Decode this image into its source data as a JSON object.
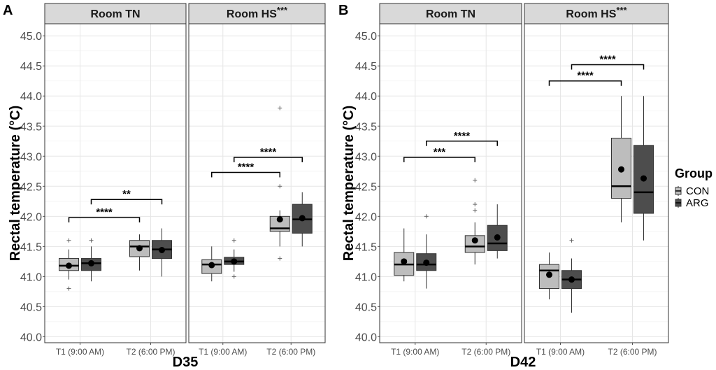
{
  "chart_data": {
    "type": "boxplot",
    "ylabel": "Rectal temperature (°C)",
    "ylim": [
      39.9,
      45.2
    ],
    "yticks": [
      "40.0",
      "40.5",
      "41.0",
      "41.5",
      "42.0",
      "42.5",
      "43.0",
      "43.5",
      "44.0",
      "44.5",
      "45.0"
    ],
    "legend": {
      "title": "Group",
      "position": "right",
      "entries": [
        {
          "label": "CON",
          "color": "#bdbdbd"
        },
        {
          "label": "ARG",
          "color": "#4d4d4d"
        }
      ]
    },
    "times": [
      "T1 (9:00 AM)",
      "T2 (6:00 PM)"
    ],
    "groups": [
      "CON",
      "ARG"
    ],
    "panels": [
      {
        "letter": "A",
        "xlabel": "D35",
        "facets": [
          {
            "title": "Room TN",
            "title_sup": "",
            "boxes": [
              {
                "time": "T1 (9:00 AM)",
                "group": "CON",
                "lower": 40.95,
                "q1": 41.1,
                "median": 41.18,
                "q3": 41.3,
                "upper": 41.45,
                "mean": 41.18,
                "outliers": [
                  41.6,
                  40.8
                ]
              },
              {
                "time": "T1 (9:00 AM)",
                "group": "ARG",
                "lower": 40.92,
                "q1": 41.1,
                "median": 41.22,
                "q3": 41.3,
                "upper": 41.5,
                "mean": 41.22,
                "outliers": [
                  41.6
                ]
              },
              {
                "time": "T2 (6:00 PM)",
                "group": "CON",
                "lower": 41.1,
                "q1": 41.33,
                "median": 41.5,
                "q3": 41.6,
                "upper": 41.7,
                "mean": 41.47,
                "outliers": []
              },
              {
                "time": "T2 (6:00 PM)",
                "group": "ARG",
                "lower": 41.0,
                "q1": 41.3,
                "median": 41.45,
                "q3": 41.6,
                "upper": 41.8,
                "mean": 41.44,
                "outliers": []
              }
            ],
            "brackets": [
              {
                "label": "****",
                "from_time": 0,
                "from_group": 0,
                "to_time": 1,
                "to_group": 0,
                "y": 41.98
              },
              {
                "label": "**",
                "from_time": 0,
                "from_group": 1,
                "to_time": 1,
                "to_group": 1,
                "y": 42.28
              }
            ]
          },
          {
            "title": "Room HS",
            "title_sup": "***",
            "boxes": [
              {
                "time": "T1 (9:00 AM)",
                "group": "CON",
                "lower": 40.92,
                "q1": 41.05,
                "median": 41.2,
                "q3": 41.28,
                "upper": 41.5,
                "mean": 41.19,
                "outliers": []
              },
              {
                "time": "T1 (9:00 AM)",
                "group": "ARG",
                "lower": 41.08,
                "q1": 41.2,
                "median": 41.25,
                "q3": 41.32,
                "upper": 41.45,
                "mean": 41.25,
                "outliers": [
                  41.6,
                  41.0
                ]
              },
              {
                "time": "T2 (6:00 PM)",
                "group": "CON",
                "lower": 41.5,
                "q1": 41.75,
                "median": 41.8,
                "q3": 42.0,
                "upper": 42.1,
                "mean": 41.95,
                "outliers": [
                  43.8,
                  42.5,
                  41.3
                ]
              },
              {
                "time": "T2 (6:00 PM)",
                "group": "ARG",
                "lower": 41.5,
                "q1": 41.72,
                "median": 41.95,
                "q3": 42.2,
                "upper": 42.4,
                "mean": 41.97,
                "outliers": []
              }
            ],
            "brackets": [
              {
                "label": "****",
                "from_time": 0,
                "from_group": 0,
                "to_time": 1,
                "to_group": 0,
                "y": 42.73
              },
              {
                "label": "****",
                "from_time": 0,
                "from_group": 1,
                "to_time": 1,
                "to_group": 1,
                "y": 42.98
              }
            ]
          }
        ]
      },
      {
        "letter": "B",
        "xlabel": "D42",
        "facets": [
          {
            "title": "Room TN",
            "title_sup": "",
            "boxes": [
              {
                "time": "T1 (9:00 AM)",
                "group": "CON",
                "lower": 40.92,
                "q1": 41.02,
                "median": 41.2,
                "q3": 41.4,
                "upper": 41.8,
                "mean": 41.25,
                "outliers": []
              },
              {
                "time": "T1 (9:00 AM)",
                "group": "ARG",
                "lower": 40.8,
                "q1": 41.1,
                "median": 41.2,
                "q3": 41.38,
                "upper": 41.7,
                "mean": 41.23,
                "outliers": [
                  42.0
                ]
              },
              {
                "time": "T2 (6:00 PM)",
                "group": "CON",
                "lower": 41.2,
                "q1": 41.4,
                "median": 41.5,
                "q3": 41.68,
                "upper": 41.9,
                "mean": 41.6,
                "outliers": [
                  42.6,
                  42.2,
                  42.1
                ]
              },
              {
                "time": "T2 (6:00 PM)",
                "group": "ARG",
                "lower": 41.3,
                "q1": 41.43,
                "median": 41.55,
                "q3": 41.85,
                "upper": 42.2,
                "mean": 41.65,
                "outliers": []
              }
            ],
            "brackets": [
              {
                "label": "***",
                "from_time": 0,
                "from_group": 0,
                "to_time": 1,
                "to_group": 0,
                "y": 42.98
              },
              {
                "label": "****",
                "from_time": 0,
                "from_group": 1,
                "to_time": 1,
                "to_group": 1,
                "y": 43.25
              }
            ]
          },
          {
            "title": "Room HS",
            "title_sup": "***",
            "boxes": [
              {
                "time": "T1 (9:00 AM)",
                "group": "CON",
                "lower": 40.62,
                "q1": 40.8,
                "median": 41.1,
                "q3": 41.2,
                "upper": 41.4,
                "mean": 41.03,
                "outliers": []
              },
              {
                "time": "T1 (9:00 AM)",
                "group": "ARG",
                "lower": 40.4,
                "q1": 40.8,
                "median": 40.95,
                "q3": 41.1,
                "upper": 41.3,
                "mean": 40.95,
                "outliers": [
                  41.6
                ]
              },
              {
                "time": "T2 (6:00 PM)",
                "group": "CON",
                "lower": 41.9,
                "q1": 42.3,
                "median": 42.5,
                "q3": 43.3,
                "upper": 44.0,
                "mean": 42.78,
                "outliers": []
              },
              {
                "time": "T2 (6:00 PM)",
                "group": "ARG",
                "lower": 41.6,
                "q1": 42.05,
                "median": 42.4,
                "q3": 43.18,
                "upper": 44.0,
                "mean": 42.63,
                "outliers": []
              }
            ],
            "brackets": [
              {
                "label": "****",
                "from_time": 0,
                "from_group": 0,
                "to_time": 1,
                "to_group": 0,
                "y": 44.25
              },
              {
                "label": "****",
                "from_time": 0,
                "from_group": 1,
                "to_time": 1,
                "to_group": 1,
                "y": 44.52
              }
            ]
          }
        ]
      }
    ]
  }
}
